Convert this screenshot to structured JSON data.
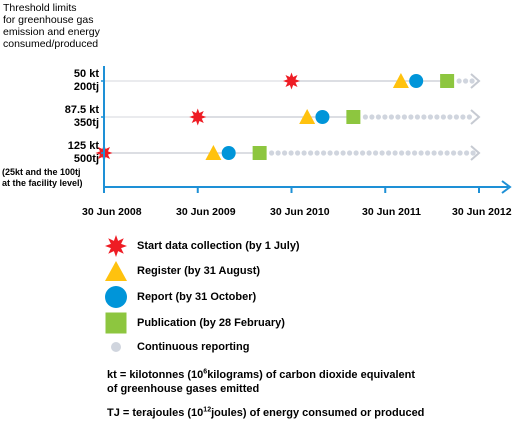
{
  "header": {
    "title_lines": [
      "Threshold limits",
      "for greenhouse gas",
      "emission and energy",
      "consumed/produced"
    ]
  },
  "rows": [
    {
      "label_lines": [
        "50 kt",
        "200tj"
      ],
      "events": {
        "start": 2010,
        "register": 2011.167,
        "report": 2011.33,
        "publication": 2011.66
      }
    },
    {
      "label_lines": [
        "87.5 kt",
        "350tj"
      ],
      "events": {
        "start": 2009,
        "register": 2010.167,
        "report": 2010.33,
        "publication": 2010.66
      }
    },
    {
      "label_lines": [
        "125 kt",
        "500tj"
      ],
      "events": {
        "start": 2008,
        "register": 2009.167,
        "report": 2009.33,
        "publication": 2009.66
      }
    }
  ],
  "facility_note": [
    "(25kt and the 100tj",
    "at the facility level)"
  ],
  "x_axis": {
    "ticks": [
      "30 Jun 2008",
      "30 Jun 2009",
      "30 Jun 2010",
      "30 Jun 2011",
      "30 Jun 2012"
    ],
    "range": [
      2008,
      2012
    ]
  },
  "legend": [
    {
      "symbol": "star-icon",
      "color": "#ee1c24",
      "label": "Start data collection (by 1 July)"
    },
    {
      "symbol": "triangle-icon",
      "color": "#ffc20e",
      "label": "Register (by 31 August)"
    },
    {
      "symbol": "circle-icon",
      "color": "#0095d9",
      "label": "Report (by 31 October)"
    },
    {
      "symbol": "square-icon",
      "color": "#8dc63f",
      "label": "Publication (by 28 February)"
    },
    {
      "symbol": "dot-icon",
      "color": "#d0d5de",
      "label": "Continuous reporting"
    }
  ],
  "notes": {
    "kt": {
      "prefix": "kt = kilotonnes (10",
      "sup": "6",
      "suffix": "kilograms) of carbon dioxide equivalent",
      "line2": "of greenhouse gases emitted"
    },
    "tj": {
      "prefix": "TJ = terajoules (10",
      "sup": "12",
      "suffix": "joules) of energy consumed or produced"
    }
  },
  "colors": {
    "axis": "#1e90d6",
    "timeline": "#c6cad2",
    "arrow": "#c6cad2"
  }
}
